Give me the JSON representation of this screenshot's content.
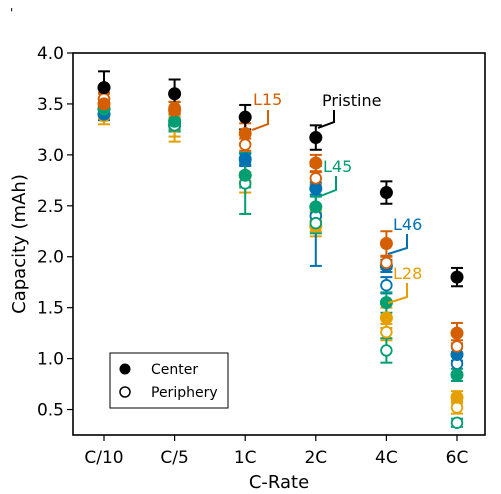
{
  "chart_data": {
    "type": "scatter",
    "stray_mark": "'",
    "xlabel": "C-Rate",
    "ylabel": "Capacity (mAh)",
    "categories": [
      "C/10",
      "C/5",
      "1C",
      "2C",
      "4C",
      "6C"
    ],
    "ylim": [
      0.25,
      4.0
    ],
    "yticks": [
      "0.5",
      "1.0",
      "1.5",
      "2.0",
      "2.5",
      "3.0",
      "3.5",
      "4.0"
    ],
    "legend": {
      "placement": "lower-left",
      "entries": [
        {
          "label": "Center",
          "marker": "filled"
        },
        {
          "label": "Periphery",
          "marker": "open"
        }
      ]
    },
    "series": [
      {
        "name": "Pristine",
        "color": "#000000",
        "center": [
          3.66,
          3.6,
          3.37,
          3.17,
          2.63,
          1.8
        ],
        "center_err": [
          0.16,
          0.14,
          0.12,
          0.12,
          0.11,
          0.09
        ],
        "periphery": [],
        "periphery_err": []
      },
      {
        "name": "L15",
        "color": "#d55e00",
        "center": [
          3.5,
          3.44,
          3.21,
          2.92,
          2.13,
          1.25
        ],
        "center_err": [
          0.1,
          0.08,
          0.1,
          0.08,
          0.12,
          0.1
        ],
        "periphery": [
          3.55,
          3.46,
          3.1,
          2.77,
          1.94,
          1.12
        ],
        "periphery_err": [
          0.06,
          0.06,
          0.06,
          0.06,
          0.06,
          0.06
        ]
      },
      {
        "name": "L45",
        "color": "#009e73",
        "center": [
          3.45,
          3.33,
          2.8,
          2.49,
          1.55,
          0.84
        ],
        "center_err": [
          0.08,
          0.08,
          0.12,
          0.1,
          0.1,
          0.06
        ],
        "periphery": [
          3.45,
          3.29,
          2.72,
          2.33,
          1.08,
          0.37
        ],
        "periphery_err": [
          0.06,
          0.06,
          0.3,
          0.1,
          0.12,
          0.04
        ]
      },
      {
        "name": "L46",
        "color": "#0072b2",
        "center": [
          3.4,
          3.29,
          2.96,
          2.67,
          1.91,
          1.04
        ],
        "center_err": [
          0.06,
          0.06,
          0.06,
          0.06,
          0.06,
          0.06
        ],
        "periphery": [
          3.55,
          3.46,
          2.95,
          2.4,
          1.72,
          0.95
        ],
        "periphery_err": [
          0.06,
          0.06,
          0.06,
          0.49,
          0.08,
          0.1
        ]
      },
      {
        "name": "L28",
        "color": "#e69f00",
        "center": [
          3.46,
          3.3,
          2.8,
          2.3,
          1.4,
          0.62
        ],
        "center_err": [
          0.1,
          0.17,
          0.1,
          0.1,
          0.1,
          0.06
        ],
        "periphery": [
          3.38,
          3.28,
          2.73,
          2.35,
          1.26,
          0.52
        ],
        "periphery_err": [
          0.08,
          0.1,
          0.1,
          0.1,
          0.08,
          0.06
        ]
      }
    ],
    "annotations": [
      {
        "text": "Pristine",
        "color": "#000000"
      },
      {
        "text": "L15",
        "color": "#d55e00"
      },
      {
        "text": "L45",
        "color": "#009e73"
      },
      {
        "text": "L46",
        "color": "#0072b2"
      },
      {
        "text": "L28",
        "color": "#e69f00"
      }
    ]
  }
}
